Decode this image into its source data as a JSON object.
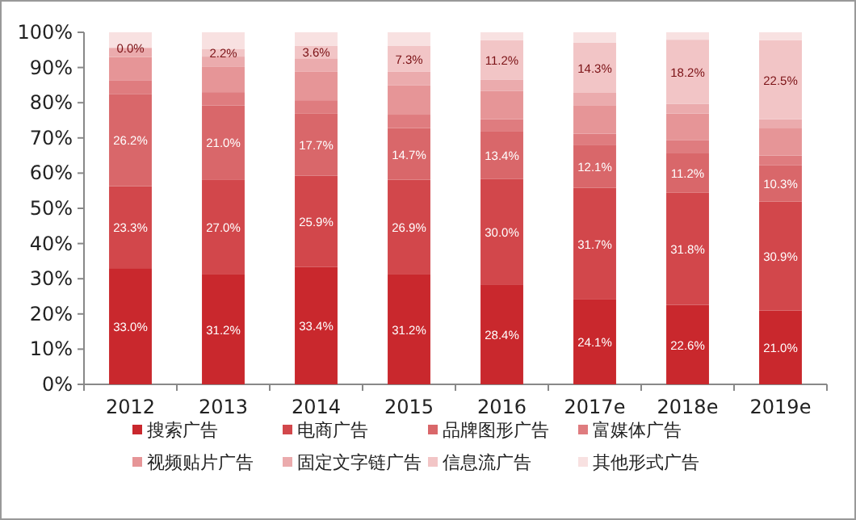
{
  "chart_data": {
    "type": "bar",
    "stacked": true,
    "legend": "bottom",
    "categories": [
      "2012",
      "2013",
      "2014",
      "2015",
      "2016",
      "2017e",
      "2018e",
      "2019e"
    ],
    "ylim": [
      0,
      100
    ],
    "yticks": [
      {
        "value": 0,
        "label": "0%"
      },
      {
        "value": 10,
        "label": "10%"
      },
      {
        "value": 20,
        "label": "20%"
      },
      {
        "value": 30,
        "label": "30%"
      },
      {
        "value": 40,
        "label": "40%"
      },
      {
        "value": 50,
        "label": "50%"
      },
      {
        "value": 60,
        "label": "60%"
      },
      {
        "value": 70,
        "label": "70%"
      },
      {
        "value": 80,
        "label": "80%"
      },
      {
        "value": 90,
        "label": "90%"
      },
      {
        "value": 100,
        "label": "100%"
      }
    ],
    "series": [
      {
        "name": "搜索广告",
        "color": "#c9282d",
        "values": [
          33.0,
          31.2,
          33.4,
          31.2,
          28.4,
          24.1,
          22.6,
          21.0
        ],
        "value_labels": [
          "33.0%",
          "31.2%",
          "33.4%",
          "31.2%",
          "28.4%",
          "24.1%",
          "22.6%",
          "21.0%"
        ]
      },
      {
        "name": "电商广告",
        "color": "#d2474b",
        "values": [
          23.3,
          27.0,
          25.9,
          26.9,
          30.0,
          31.7,
          31.8,
          30.9
        ],
        "value_labels": [
          "23.3%",
          "27.0%",
          "25.9%",
          "26.9%",
          "30.0%",
          "31.7%",
          "31.8%",
          "30.9%"
        ]
      },
      {
        "name": "品牌图形广告",
        "color": "#d9676a",
        "values": [
          26.2,
          21.0,
          17.7,
          14.7,
          13.4,
          12.1,
          11.2,
          10.3
        ],
        "value_labels": [
          "26.2%",
          "21.0%",
          "17.7%",
          "14.7%",
          "13.4%",
          "12.1%",
          "11.2%",
          "10.3%"
        ]
      },
      {
        "name": "富媒体广告",
        "color": "#df7c7f",
        "values": [
          3.9,
          3.8,
          3.7,
          3.8,
          3.5,
          3.3,
          3.7,
          2.8
        ]
      },
      {
        "name": "视频贴片广告",
        "color": "#e69597",
        "values": [
          6.6,
          7.3,
          8.1,
          8.4,
          8.0,
          8.1,
          7.6,
          7.7
        ]
      },
      {
        "name": "固定文字链广告",
        "color": "#ebabad",
        "values": [
          2.6,
          2.8,
          3.8,
          3.8,
          3.3,
          3.5,
          2.8,
          2.6
        ]
      },
      {
        "name": "信息流广告",
        "color": "#f2c5c6",
        "values": [
          0.0,
          2.2,
          3.6,
          7.3,
          11.2,
          14.3,
          18.2,
          22.5
        ],
        "value_labels": [
          "0.0%",
          "2.2%",
          "3.6%",
          "7.3%",
          "11.2%",
          "14.3%",
          "18.2%",
          "22.5%"
        ]
      },
      {
        "name": "其他形式广告",
        "color": "#f8e1e1",
        "values": [
          4.4,
          4.7,
          3.8,
          3.9,
          2.2,
          2.9,
          2.1,
          2.2
        ]
      }
    ]
  }
}
